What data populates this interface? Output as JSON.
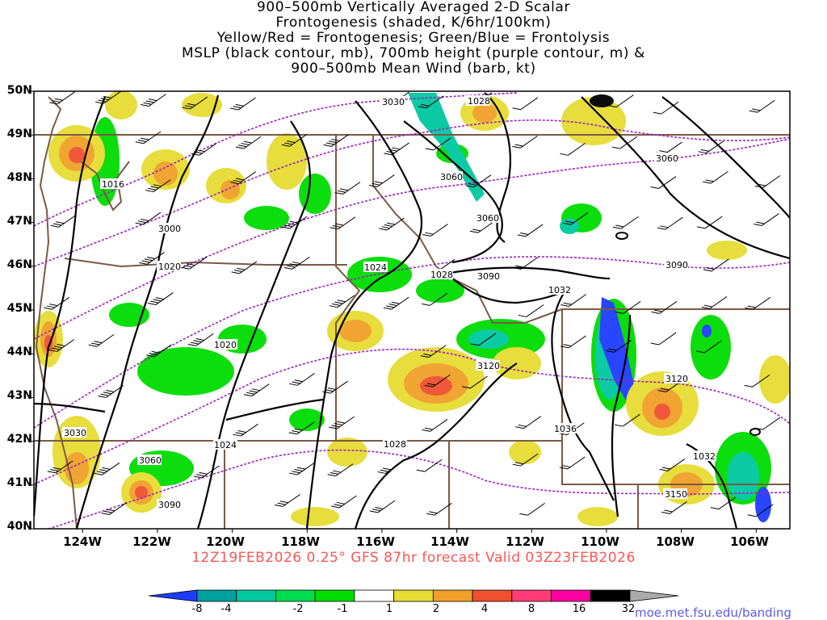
{
  "title": {
    "lines": [
      "900–500mb Vertically Averaged 2-D Scalar",
      "Frontogenesis (shaded, K/6hr/100km)",
      "Yellow/Red = Frontogenesis;  Green/Blue = Frontolysis",
      "MSLP (black contour, mb), 700mb height (purple contour, m) &",
      "900–500mb Mean Wind (barb, kt)"
    ]
  },
  "subtitle": "12Z19FEB2026 0.25° GFS 87hr forecast Valid 03Z23FEB2026",
  "credit": "moe.met.fsu.edu/banding",
  "axes": {
    "lat_labels": [
      "50N",
      "49N",
      "48N",
      "47N",
      "46N",
      "45N",
      "44N",
      "43N",
      "42N",
      "41N",
      "40N"
    ],
    "lon_labels": [
      "124W",
      "122W",
      "120W",
      "118W",
      "116W",
      "114W",
      "112W",
      "110W",
      "108W",
      "106W"
    ],
    "lat_range": [
      40,
      50
    ],
    "lon_range": [
      -125.3,
      -105.1
    ]
  },
  "colorbar": {
    "labels": [
      "-8",
      "-4",
      "-2",
      "-1",
      "1",
      "2",
      "4",
      "8",
      "16",
      "32"
    ],
    "colors": [
      "#1e3cff",
      "#00a0a0",
      "#00c8a0",
      "#00dc50",
      "#00dc00",
      "#ffffff",
      "#e6dc32",
      "#f0a028",
      "#f05030",
      "#ff3c78",
      "#ff00a0",
      "#000000",
      "#aaaaaa"
    ]
  },
  "contour_labels": {
    "mslp": [
      "1016",
      "1020",
      "1020",
      "1024",
      "1024",
      "1028",
      "1028",
      "1028",
      "1032",
      "1032",
      "1036"
    ],
    "height700": [
      "3030",
      "3060",
      "3000",
      "3060",
      "3090",
      "3090",
      "3120",
      "3120",
      "3030",
      "3060",
      "3090",
      "3150",
      "3060"
    ]
  },
  "colors": {
    "mslp": "#000000",
    "height700": "#a020c0",
    "borders": "#7a5a45",
    "subtitle": "#ff5555",
    "credit": "#5a5af0"
  }
}
